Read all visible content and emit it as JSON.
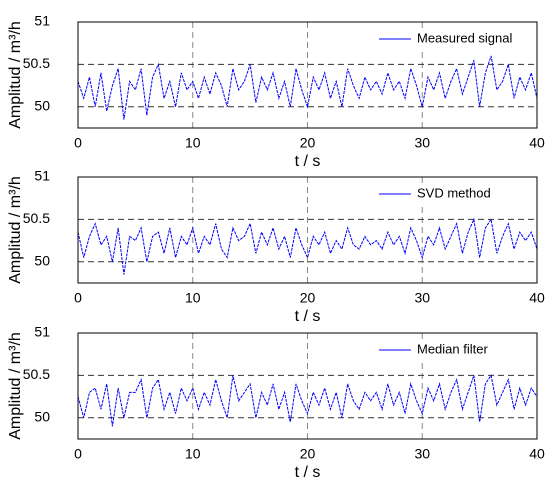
{
  "chart_data": [
    {
      "type": "line",
      "xlabel": "t / s",
      "ylabel": "Amplitud / m³/h",
      "xlim": [
        0,
        40
      ],
      "ylim": [
        49.75,
        51
      ],
      "xticks": [
        0,
        10,
        20,
        30,
        40
      ],
      "yticks": [
        50,
        50.5,
        51
      ],
      "grid": true,
      "legend": "upper right",
      "x": [
        0,
        0.5,
        1,
        1.5,
        2,
        2.5,
        3,
        3.5,
        4,
        4.5,
        5,
        5.5,
        6,
        6.5,
        7,
        7.5,
        8,
        8.5,
        9,
        9.5,
        10,
        10.5,
        11,
        11.5,
        12,
        12.5,
        13,
        13.5,
        14,
        14.5,
        15,
        15.5,
        16,
        16.5,
        17,
        17.5,
        18,
        18.5,
        19,
        19.5,
        20,
        20.5,
        21,
        21.5,
        22,
        22.5,
        23,
        23.5,
        24,
        24.5,
        25,
        25.5,
        26,
        26.5,
        27,
        27.5,
        28,
        28.5,
        29,
        29.5,
        30,
        30.5,
        31,
        31.5,
        32,
        32.5,
        33,
        33.5,
        34,
        34.5,
        35,
        35.5,
        36,
        36.5,
        37,
        37.5,
        38,
        38.5,
        39,
        39.5,
        40
      ],
      "series": [
        {
          "name": "Measured signal",
          "color": "#0000ff",
          "values": [
            50.3,
            50.1,
            50.35,
            50.0,
            50.4,
            49.95,
            50.25,
            50.45,
            49.85,
            50.3,
            50.2,
            50.45,
            49.9,
            50.35,
            50.5,
            50.1,
            50.3,
            50.0,
            50.4,
            50.2,
            50.3,
            50.1,
            50.35,
            50.15,
            50.4,
            50.25,
            50.0,
            50.45,
            50.2,
            50.3,
            50.5,
            50.05,
            50.35,
            50.2,
            50.4,
            50.1,
            50.3,
            50.0,
            50.45,
            50.2,
            50.0,
            50.35,
            50.2,
            50.4,
            50.1,
            50.3,
            50.0,
            50.45,
            50.25,
            50.1,
            50.35,
            50.2,
            50.3,
            50.15,
            50.4,
            50.2,
            50.3,
            50.1,
            50.45,
            50.25,
            50.0,
            50.35,
            50.2,
            50.4,
            50.1,
            50.3,
            50.45,
            50.15,
            50.35,
            50.55,
            50.0,
            50.4,
            50.6,
            50.2,
            50.3,
            50.5,
            50.1,
            50.35,
            50.2,
            50.4,
            50.1
          ]
        }
      ]
    },
    {
      "type": "line",
      "xlabel": "t / s",
      "ylabel": "Amplitud / m³/h",
      "xlim": [
        0,
        40
      ],
      "ylim": [
        49.75,
        51
      ],
      "xticks": [
        0,
        10,
        20,
        30,
        40
      ],
      "yticks": [
        50,
        50.5,
        51
      ],
      "grid": true,
      "legend": "upper right",
      "x": [
        0,
        0.5,
        1,
        1.5,
        2,
        2.5,
        3,
        3.5,
        4,
        4.5,
        5,
        5.5,
        6,
        6.5,
        7,
        7.5,
        8,
        8.5,
        9,
        9.5,
        10,
        10.5,
        11,
        11.5,
        12,
        12.5,
        13,
        13.5,
        14,
        14.5,
        15,
        15.5,
        16,
        16.5,
        17,
        17.5,
        18,
        18.5,
        19,
        19.5,
        20,
        20.5,
        21,
        21.5,
        22,
        22.5,
        23,
        23.5,
        24,
        24.5,
        25,
        25.5,
        26,
        26.5,
        27,
        27.5,
        28,
        28.5,
        29,
        29.5,
        30,
        30.5,
        31,
        31.5,
        32,
        32.5,
        33,
        33.5,
        34,
        34.5,
        35,
        35.5,
        36,
        36.5,
        37,
        37.5,
        38,
        38.5,
        39,
        39.5,
        40
      ],
      "series": [
        {
          "name": "SVD method",
          "color": "#0000ff",
          "values": [
            50.35,
            50.05,
            50.3,
            50.45,
            50.2,
            50.3,
            50.0,
            50.4,
            49.85,
            50.3,
            50.25,
            50.4,
            50.0,
            50.3,
            50.35,
            50.1,
            50.4,
            50.05,
            50.3,
            50.2,
            50.4,
            50.1,
            50.3,
            50.2,
            50.45,
            50.15,
            50.05,
            50.4,
            50.25,
            50.3,
            50.45,
            50.1,
            50.35,
            50.2,
            50.4,
            50.15,
            50.3,
            50.05,
            50.4,
            50.2,
            50.05,
            50.3,
            50.2,
            50.35,
            50.1,
            50.25,
            50.15,
            50.4,
            50.2,
            50.15,
            50.3,
            50.2,
            50.25,
            50.15,
            50.35,
            50.2,
            50.3,
            50.1,
            50.4,
            50.25,
            50.05,
            50.3,
            50.2,
            50.4,
            50.15,
            50.3,
            50.45,
            50.1,
            50.35,
            50.5,
            50.05,
            50.4,
            50.5,
            50.1,
            50.3,
            50.45,
            50.15,
            50.35,
            50.25,
            50.35,
            50.15
          ]
        }
      ]
    },
    {
      "type": "line",
      "xlabel": "t / s",
      "ylabel": "Amplitud / m³/h",
      "xlim": [
        0,
        40
      ],
      "ylim": [
        49.75,
        51
      ],
      "xticks": [
        0,
        10,
        20,
        30,
        40
      ],
      "yticks": [
        50,
        50.5,
        51
      ],
      "grid": true,
      "legend": "upper right",
      "x": [
        0,
        0.5,
        1,
        1.5,
        2,
        2.5,
        3,
        3.5,
        4,
        4.5,
        5,
        5.5,
        6,
        6.5,
        7,
        7.5,
        8,
        8.5,
        9,
        9.5,
        10,
        10.5,
        11,
        11.5,
        12,
        12.5,
        13,
        13.5,
        14,
        14.5,
        15,
        15.5,
        16,
        16.5,
        17,
        17.5,
        18,
        18.5,
        19,
        19.5,
        20,
        20.5,
        21,
        21.5,
        22,
        22.5,
        23,
        23.5,
        24,
        24.5,
        25,
        25.5,
        26,
        26.5,
        27,
        27.5,
        28,
        28.5,
        29,
        29.5,
        30,
        30.5,
        31,
        31.5,
        32,
        32.5,
        33,
        33.5,
        34,
        34.5,
        35,
        35.5,
        36,
        36.5,
        37,
        37.5,
        38,
        38.5,
        39,
        39.5,
        40
      ],
      "series": [
        {
          "name": "Median filter",
          "color": "#0000ff",
          "values": [
            50.25,
            50.0,
            50.3,
            50.35,
            50.1,
            50.4,
            49.9,
            50.35,
            50.0,
            50.3,
            50.3,
            50.45,
            50.0,
            50.35,
            50.45,
            50.1,
            50.3,
            50.05,
            50.35,
            50.2,
            50.35,
            50.1,
            50.3,
            50.15,
            50.45,
            50.2,
            50.0,
            50.5,
            50.2,
            50.3,
            50.4,
            50.0,
            50.3,
            50.15,
            50.4,
            50.1,
            50.3,
            49.95,
            50.4,
            50.2,
            50.05,
            50.3,
            50.15,
            50.35,
            50.1,
            50.3,
            50.0,
            50.4,
            50.2,
            50.1,
            50.3,
            50.2,
            50.3,
            50.1,
            50.4,
            50.15,
            50.3,
            50.05,
            50.4,
            50.2,
            50.05,
            50.35,
            50.2,
            50.4,
            50.1,
            50.3,
            50.45,
            50.1,
            50.3,
            50.5,
            49.95,
            50.4,
            50.5,
            50.15,
            50.3,
            50.45,
            50.1,
            50.35,
            50.15,
            50.35,
            50.25
          ]
        }
      ]
    }
  ]
}
